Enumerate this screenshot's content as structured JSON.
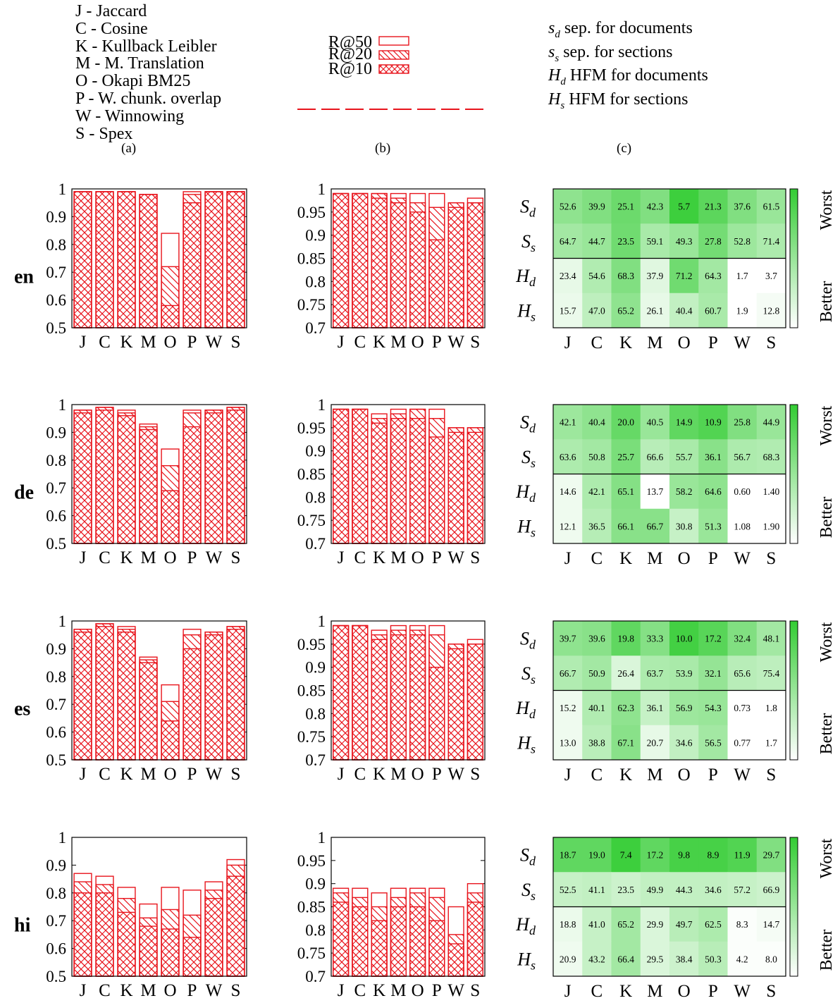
{
  "legend_a": [
    "J - Jaccard",
    "C - Cosine",
    "K - Kullback Leibler",
    "M - M. Translation",
    "O - Okapi BM25",
    "P - W. chunk. overlap",
    "W - Winnowing",
    "S - Spex"
  ],
  "legend_b": [
    "R@50",
    "R@20",
    "R@10"
  ],
  "legend_c": [
    {
      "symbol": "s",
      "sub": "d",
      "text": " sep. for documents"
    },
    {
      "symbol": "s",
      "sub": "s",
      "text": " sep. for sections"
    },
    {
      "symbol": "H",
      "sub": "d",
      "text": " HFM for documents"
    },
    {
      "symbol": "H",
      "sub": "s",
      "text": " HFM for sections"
    }
  ],
  "panel_labels": [
    "(a)",
    "(b)",
    "(c)"
  ],
  "colorbar": {
    "top": "Worst",
    "bottom": "Better"
  },
  "colors": {
    "bar": "#e8141c",
    "heat_max": "#33cc33",
    "heat_min": "#ffffff"
  },
  "chart_data": {
    "type": "bar",
    "categories": [
      "J",
      "C",
      "K",
      "M",
      "O",
      "P",
      "W",
      "S"
    ],
    "row_labels": [
      "en",
      "de",
      "es",
      "hi"
    ],
    "series_names": [
      "R@50",
      "R@20",
      "R@10"
    ],
    "col_a": {
      "ylim": [
        0.5,
        1
      ],
      "ticks": [
        "0.5",
        "0.6",
        "0.7",
        "0.8",
        "0.9",
        "1"
      ],
      "rows": [
        {
          "r50": [
            0.99,
            0.99,
            0.99,
            0.98,
            0.84,
            0.99,
            0.99,
            0.99
          ],
          "r20": [
            0.99,
            0.99,
            0.99,
            0.98,
            0.72,
            0.98,
            0.99,
            0.99
          ],
          "r10": [
            0.99,
            0.99,
            0.99,
            0.98,
            0.58,
            0.95,
            0.99,
            0.99
          ]
        },
        {
          "r50": [
            0.98,
            0.99,
            0.98,
            0.93,
            0.84,
            0.98,
            0.98,
            0.99
          ],
          "r20": [
            0.98,
            0.99,
            0.97,
            0.92,
            0.78,
            0.97,
            0.98,
            0.99
          ],
          "r10": [
            0.97,
            0.98,
            0.96,
            0.91,
            0.69,
            0.92,
            0.97,
            0.98
          ]
        },
        {
          "r50": [
            0.97,
            0.99,
            0.98,
            0.87,
            0.77,
            0.97,
            0.96,
            0.98
          ],
          "r20": [
            0.97,
            0.99,
            0.97,
            0.86,
            0.71,
            0.95,
            0.96,
            0.98
          ],
          "r10": [
            0.96,
            0.98,
            0.96,
            0.85,
            0.64,
            0.9,
            0.95,
            0.97
          ]
        },
        {
          "r50": [
            0.87,
            0.86,
            0.82,
            0.76,
            0.82,
            0.81,
            0.84,
            0.92
          ],
          "r20": [
            0.84,
            0.83,
            0.78,
            0.71,
            0.74,
            0.72,
            0.81,
            0.9
          ],
          "r10": [
            0.8,
            0.8,
            0.73,
            0.68,
            0.67,
            0.64,
            0.78,
            0.86
          ]
        }
      ]
    },
    "col_b": {
      "ylim": [
        0.7,
        1
      ],
      "ticks": [
        "0.7",
        "0.75",
        "0.8",
        "0.85",
        "0.9",
        "0.95",
        "1"
      ],
      "rows": [
        {
          "r50": [
            0.99,
            0.99,
            0.99,
            0.99,
            0.99,
            0.99,
            0.97,
            0.98
          ],
          "r20": [
            0.99,
            0.99,
            0.99,
            0.98,
            0.97,
            0.96,
            0.97,
            0.97
          ],
          "r10": [
            0.99,
            0.99,
            0.98,
            0.97,
            0.95,
            0.89,
            0.96,
            0.97
          ]
        },
        {
          "r50": [
            0.99,
            0.99,
            0.98,
            0.99,
            0.99,
            0.99,
            0.95,
            0.95
          ],
          "r20": [
            0.99,
            0.99,
            0.97,
            0.98,
            0.99,
            0.97,
            0.95,
            0.95
          ],
          "r10": [
            0.99,
            0.99,
            0.96,
            0.97,
            0.97,
            0.93,
            0.94,
            0.94
          ]
        },
        {
          "r50": [
            0.99,
            0.99,
            0.98,
            0.99,
            0.99,
            0.99,
            0.95,
            0.96
          ],
          "r20": [
            0.99,
            0.99,
            0.97,
            0.98,
            0.98,
            0.97,
            0.95,
            0.95
          ],
          "r10": [
            0.99,
            0.99,
            0.96,
            0.97,
            0.97,
            0.9,
            0.94,
            0.95
          ]
        },
        {
          "r50": [
            0.89,
            0.89,
            0.88,
            0.89,
            0.89,
            0.89,
            0.85,
            0.9
          ],
          "r20": [
            0.88,
            0.87,
            0.85,
            0.87,
            0.88,
            0.87,
            0.79,
            0.88
          ],
          "r10": [
            0.86,
            0.85,
            0.82,
            0.85,
            0.85,
            0.82,
            0.77,
            0.86
          ]
        }
      ]
    },
    "col_c": {
      "type": "heatmap",
      "row_labels": [
        {
          "sym": "S",
          "sub": "d"
        },
        {
          "sym": "S",
          "sub": "s"
        },
        {
          "sym": "H",
          "sub": "d"
        },
        {
          "sym": "H",
          "sub": "s"
        }
      ],
      "rows": [
        [
          [
            "52.6",
            "39.9",
            "25.1",
            "42.3",
            "5.7",
            "21.3",
            "37.6",
            "61.5"
          ],
          [
            "64.7",
            "44.7",
            "23.5",
            "59.1",
            "49.3",
            "27.8",
            "52.8",
            "71.4"
          ],
          [
            "23.4",
            "54.6",
            "68.3",
            "37.9",
            "71.2",
            "64.3",
            "1.7",
            "3.7"
          ],
          [
            "15.7",
            "47.0",
            "65.2",
            "26.1",
            "40.4",
            "60.7",
            "1.9",
            "12.8"
          ]
        ],
        [
          [
            "42.1",
            "40.4",
            "20.0",
            "40.5",
            "14.9",
            "10.9",
            "25.8",
            "44.9"
          ],
          [
            "63.6",
            "50.8",
            "25.7",
            "66.6",
            "55.7",
            "36.1",
            "56.7",
            "68.3"
          ],
          [
            "14.6",
            "42.1",
            "65.1",
            "13.7",
            "58.2",
            "64.6",
            "0.60",
            "1.40"
          ],
          [
            "12.1",
            "36.5",
            "66.1",
            "66.7",
            "30.8",
            "51.3",
            "1.08",
            "1.90"
          ]
        ],
        [
          [
            "39.7",
            "39.6",
            "19.8",
            "33.3",
            "10.0",
            "17.2",
            "32.4",
            "48.1"
          ],
          [
            "66.7",
            "50.9",
            "26.4",
            "63.7",
            "53.9",
            "32.1",
            "65.6",
            "75.4"
          ],
          [
            "15.2",
            "40.1",
            "62.3",
            "36.1",
            "56.9",
            "54.3",
            "0.73",
            "1.8"
          ],
          [
            "13.0",
            "38.8",
            "67.1",
            "20.7",
            "34.6",
            "56.5",
            "0.77",
            "1.7"
          ]
        ],
        [
          [
            "18.7",
            "19.0",
            "7.4",
            "17.2",
            "9.8",
            "8.9",
            "11.9",
            "29.7"
          ],
          [
            "52.5",
            "41.1",
            "23.5",
            "49.9",
            "44.3",
            "34.6",
            "57.2",
            "66.9"
          ],
          [
            "18.8",
            "41.0",
            "65.2",
            "29.9",
            "49.7",
            "62.5",
            "8.3",
            "14.7"
          ],
          [
            "20.9",
            "43.2",
            "66.4",
            "29.5",
            "38.4",
            "50.3",
            "4.2",
            "8.0"
          ]
        ]
      ],
      "intensity": [
        [
          [
            0.55,
            0.62,
            0.72,
            0.62,
            0.95,
            0.8,
            0.62,
            0.5
          ],
          [
            0.45,
            0.5,
            0.7,
            0.42,
            0.5,
            0.68,
            0.48,
            0.4
          ],
          [
            0.12,
            0.38,
            0.62,
            0.15,
            0.7,
            0.45,
            0.0,
            0.0
          ],
          [
            0.1,
            0.32,
            0.55,
            0.12,
            0.3,
            0.42,
            0.0,
            0.05
          ]
        ],
        [
          [
            0.48,
            0.55,
            0.75,
            0.5,
            0.78,
            0.85,
            0.62,
            0.5
          ],
          [
            0.4,
            0.45,
            0.65,
            0.35,
            0.42,
            0.58,
            0.4,
            0.38
          ],
          [
            0.08,
            0.4,
            0.6,
            0.0,
            0.5,
            0.55,
            0.0,
            0.0
          ],
          [
            0.08,
            0.36,
            0.58,
            0.58,
            0.28,
            0.5,
            0.0,
            0.0
          ]
        ],
        [
          [
            0.55,
            0.58,
            0.78,
            0.6,
            0.92,
            0.82,
            0.62,
            0.45
          ],
          [
            0.38,
            0.45,
            0.18,
            0.4,
            0.42,
            0.52,
            0.35,
            0.32
          ],
          [
            0.08,
            0.38,
            0.55,
            0.28,
            0.48,
            0.5,
            0.0,
            0.0
          ],
          [
            0.08,
            0.34,
            0.58,
            0.12,
            0.3,
            0.45,
            0.0,
            0.0
          ]
        ],
        [
          [
            0.78,
            0.78,
            0.95,
            0.78,
            0.9,
            0.9,
            0.85,
            0.62
          ],
          [
            0.28,
            0.3,
            0.25,
            0.3,
            0.3,
            0.3,
            0.28,
            0.25
          ],
          [
            0.1,
            0.28,
            0.45,
            0.18,
            0.35,
            0.4,
            0.02,
            0.05
          ],
          [
            0.08,
            0.28,
            0.45,
            0.18,
            0.25,
            0.35,
            0.02,
            0.02
          ]
        ]
      ]
    }
  }
}
